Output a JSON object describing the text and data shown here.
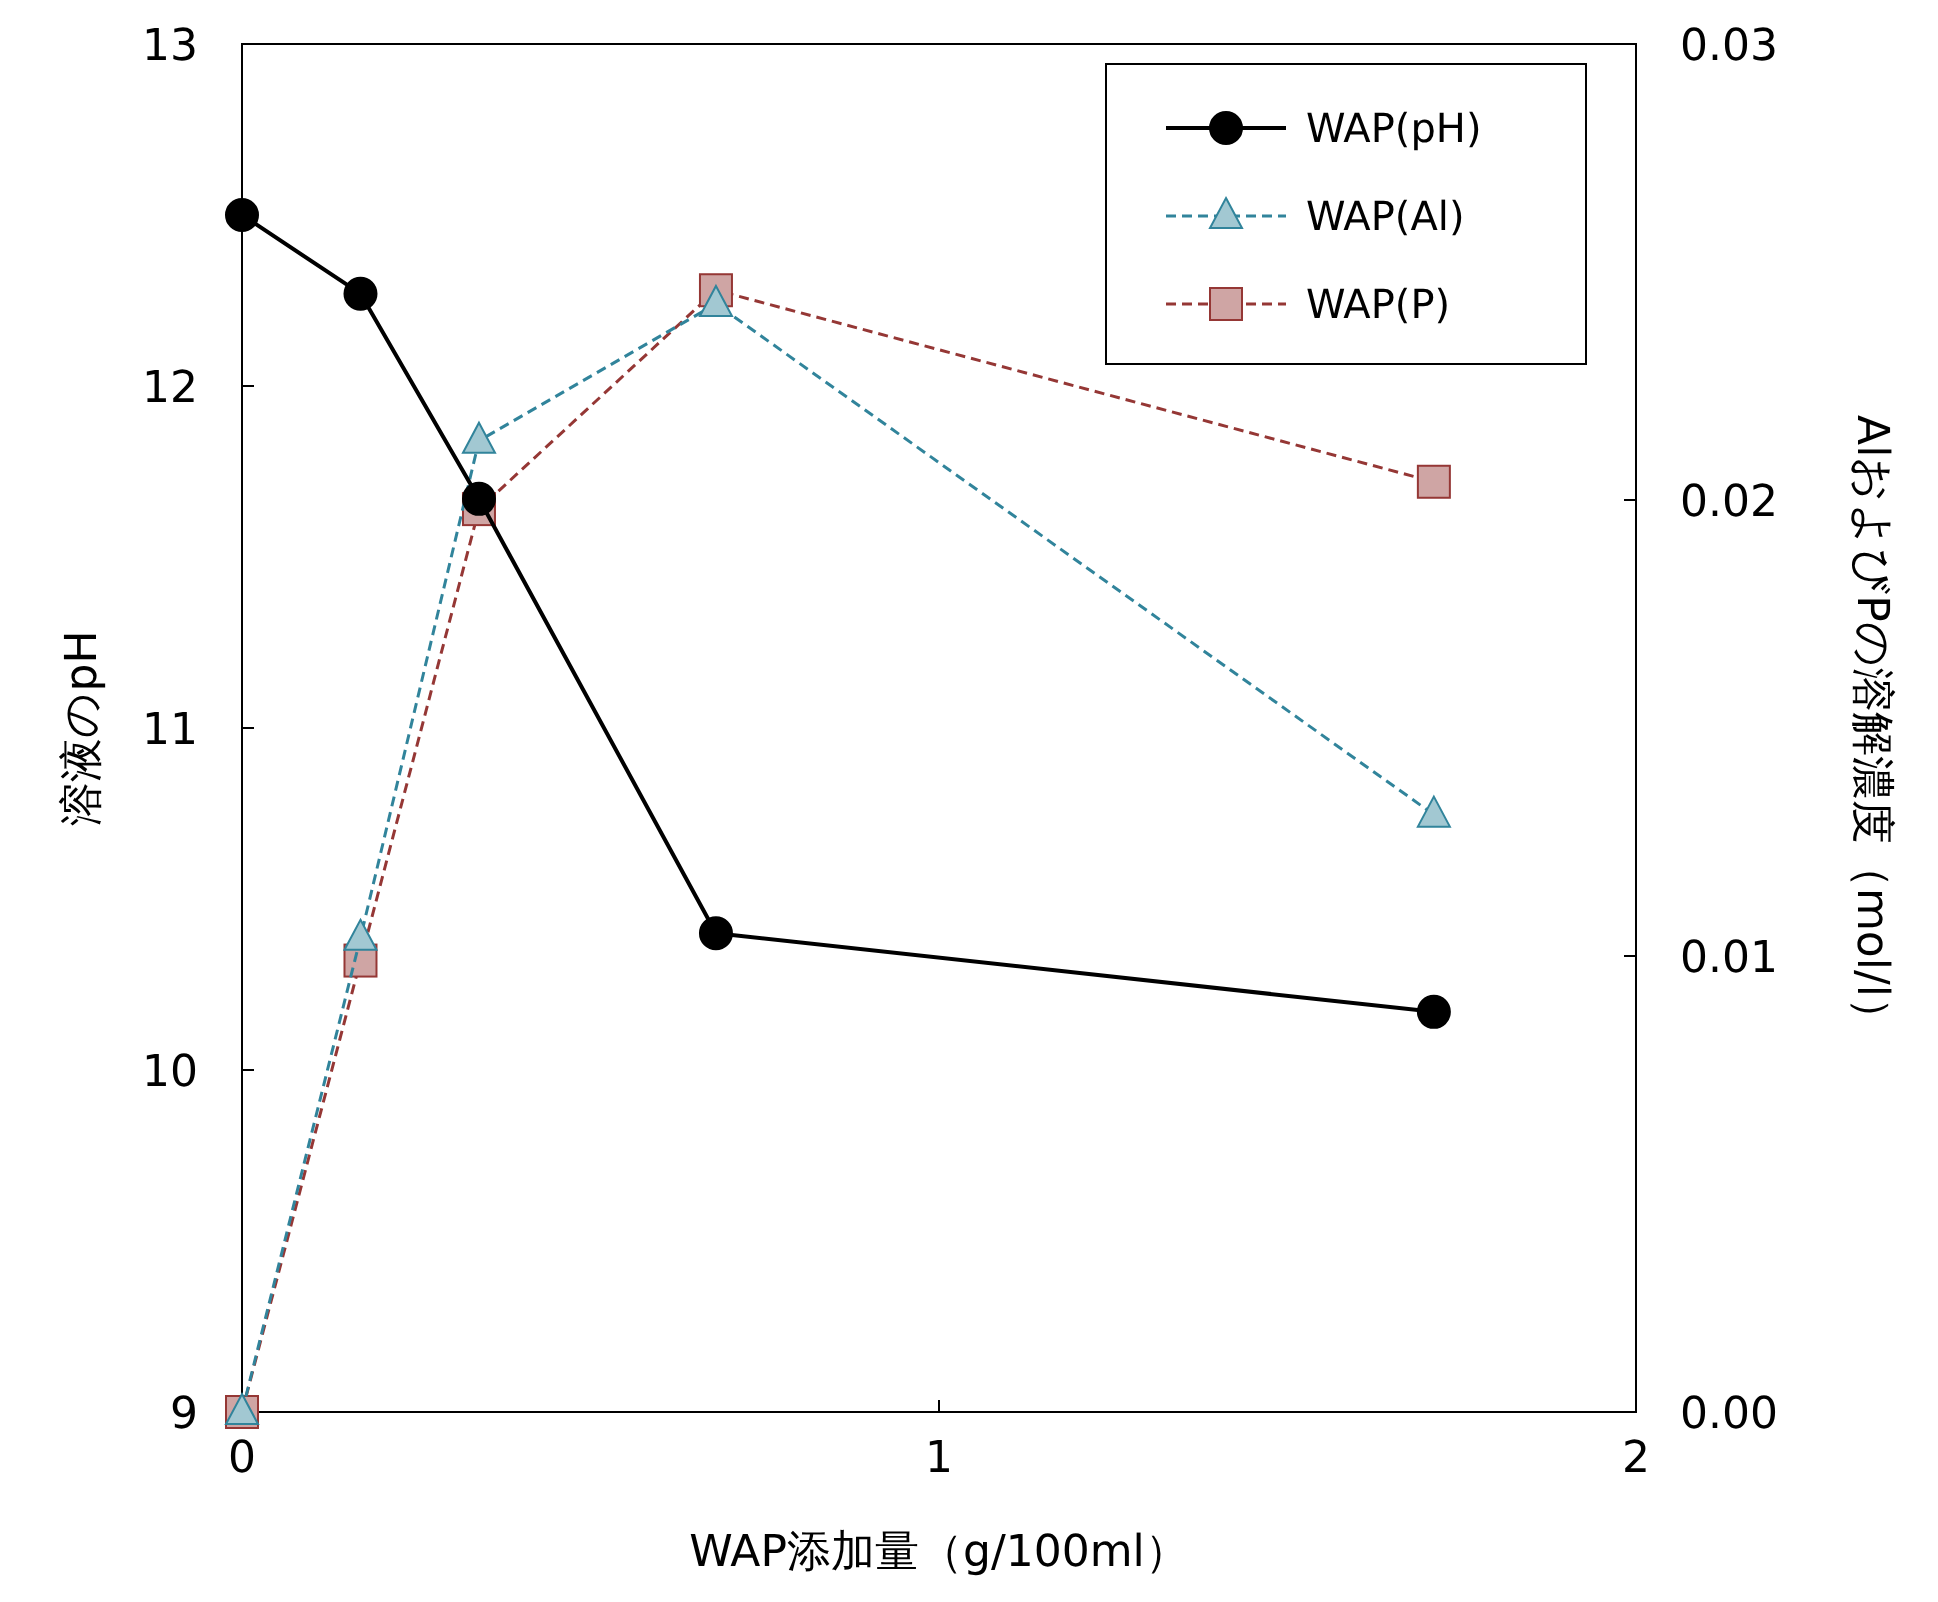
{
  "chart_data": {
    "type": "line",
    "xlabel": "WAP添加量（g/100ml）",
    "ylabel": "溶液のpH",
    "y2label": "AlおよびPの溶解濃度（mol/l）",
    "xlim": [
      0,
      2
    ],
    "xticks": [
      0,
      1,
      2
    ],
    "ylim": [
      9,
      13
    ],
    "yticks": [
      9,
      10,
      11,
      12,
      13
    ],
    "y2lim": [
      0,
      0.03
    ],
    "y2ticks": [
      {
        "value": 0,
        "label": "0.00"
      },
      {
        "value": 0.01,
        "label": "0.01"
      },
      {
        "value": 0.02,
        "label": "0.02"
      },
      {
        "value": 0.03,
        "label": "0.03"
      }
    ],
    "x": [
      0,
      0.17,
      0.34,
      0.68,
      1.71
    ],
    "legend": "top right",
    "grid": false,
    "series": [
      {
        "name": "WAP(pH)",
        "color": "#000000",
        "marker": "circle",
        "line_style": "solid",
        "values": [
          12.5,
          12.27,
          11.67,
          10.4,
          10.17
        ]
      },
      {
        "name": "WAP(Al)",
        "color": "#31849b",
        "marker": "triangle",
        "line_style": "dashed",
        "axis": "y2",
        "values": [
          0,
          0.0104,
          0.0213,
          0.0243,
          0.0131
        ]
      },
      {
        "name": "WAP(P)",
        "color": "#953735",
        "marker": "square",
        "line_style": "dashed",
        "axis": "y2",
        "values": [
          0,
          0.0099,
          0.0198,
          0.0246,
          0.0204
        ]
      }
    ]
  }
}
